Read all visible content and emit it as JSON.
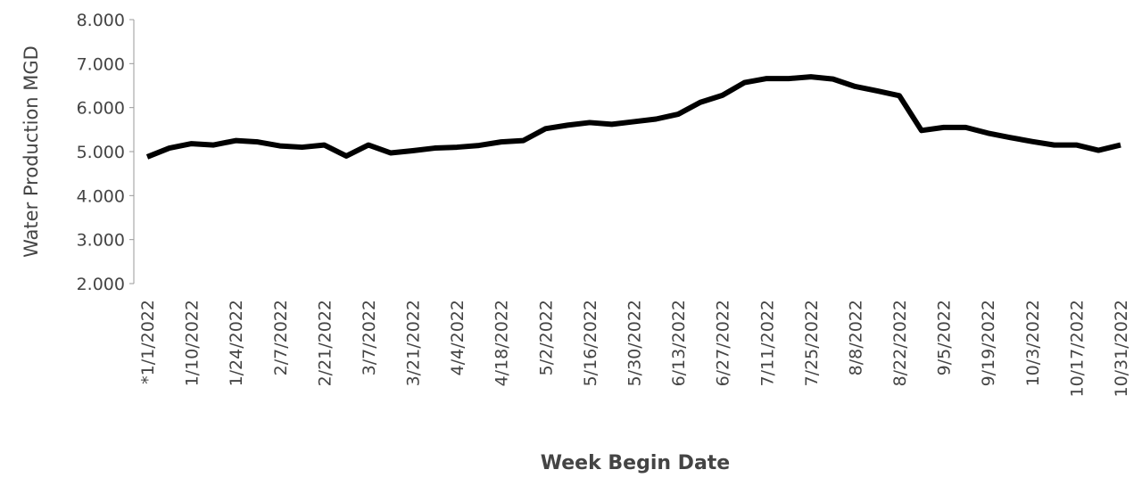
{
  "chart_data": {
    "type": "line",
    "x_label": "Week Begin Date",
    "y_label": "Water Production MGD",
    "categories": [
      "*1/1/2022",
      null,
      "1/10/2022",
      null,
      "1/24/2022",
      null,
      "2/7/2022",
      null,
      "2/21/2022",
      null,
      "3/7/2022",
      null,
      "3/21/2022",
      null,
      "4/4/2022",
      null,
      "4/18/2022",
      null,
      "5/2/2022",
      null,
      "5/16/2022",
      null,
      "5/30/2022",
      null,
      "6/13/2022",
      null,
      "6/27/2022",
      null,
      "7/11/2022",
      null,
      "7/25/2022",
      null,
      "8/8/2022",
      null,
      "8/22/2022",
      null,
      "9/5/2022",
      null,
      "9/19/2022",
      null,
      "10/3/2022",
      null,
      "10/17/2022",
      null,
      "10/31/2022"
    ],
    "series": [
      {
        "color": "#000000",
        "values": [
          4.88,
          5.08,
          5.18,
          5.15,
          5.25,
          5.22,
          5.13,
          5.1,
          5.15,
          4.9,
          5.15,
          4.97,
          5.02,
          5.08,
          5.1,
          5.14,
          5.22,
          5.25,
          5.52,
          5.6,
          5.66,
          5.62,
          5.68,
          5.74,
          5.85,
          6.12,
          6.28,
          6.57,
          6.66,
          6.66,
          6.7,
          6.65,
          6.48,
          6.38,
          6.27,
          5.48,
          5.55,
          5.55,
          5.42,
          5.32,
          5.23,
          5.15,
          5.15,
          5.03,
          5.15
        ]
      }
    ],
    "ylim": [
      2,
      8
    ],
    "yticks": [
      {
        "value": 2,
        "label": "2.000"
      },
      {
        "value": 3,
        "label": "3.000"
      },
      {
        "value": 4,
        "label": "4.000"
      },
      {
        "value": 5,
        "label": "5.000"
      },
      {
        "value": 6,
        "label": "6.000"
      },
      {
        "value": 7,
        "label": "7.000"
      },
      {
        "value": 8,
        "label": "8.000"
      }
    ],
    "grid": false
  }
}
